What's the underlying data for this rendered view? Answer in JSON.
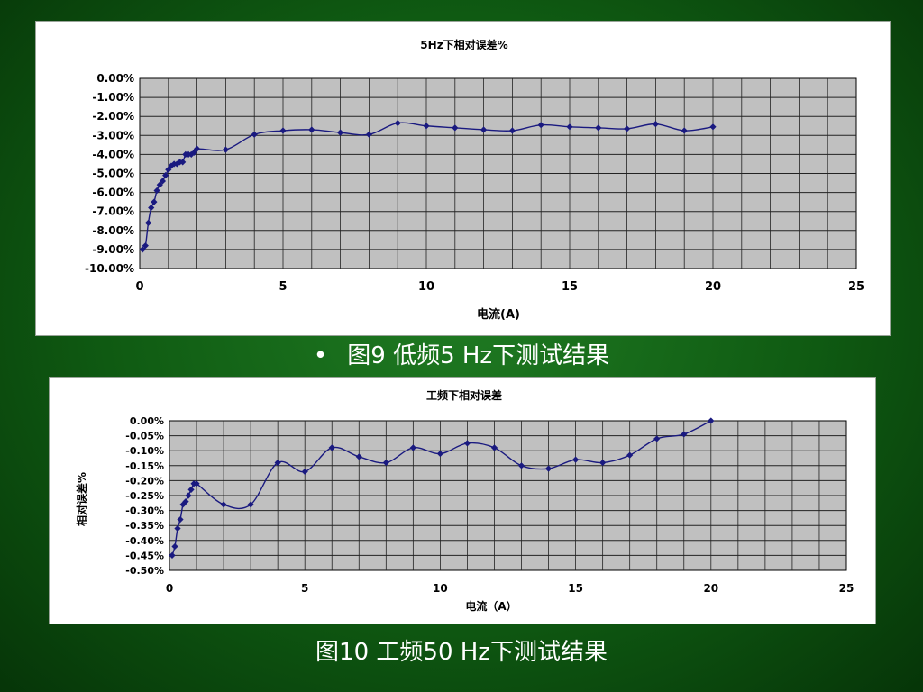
{
  "chart_data": [
    {
      "type": "line",
      "title": "5Hz下相对误差%",
      "xlabel": "电流(A)",
      "ylabel": "",
      "xlim": [
        0,
        25
      ],
      "ylim": [
        -10,
        0
      ],
      "x_ticks": [
        0,
        5,
        10,
        15,
        20,
        25
      ],
      "x_tick_labels": [
        "0",
        "5",
        "10",
        "15",
        "20",
        "25"
      ],
      "y_ticks": [
        0,
        -1,
        -2,
        -3,
        -4,
        -5,
        -6,
        -7,
        -8,
        -9,
        -10
      ],
      "y_tick_labels": [
        "0.00%",
        "-1.00%",
        "-2.00%",
        "-3.00%",
        "-4.00%",
        "-5.00%",
        "-6.00%",
        "-7.00%",
        "-8.00%",
        "-9.00%",
        "-10.00%"
      ],
      "grid": true,
      "color": "#1a1a80",
      "x": [
        0.1,
        0.2,
        0.3,
        0.4,
        0.5,
        0.6,
        0.7,
        0.8,
        0.9,
        1.0,
        1.1,
        1.2,
        1.3,
        1.4,
        1.5,
        1.6,
        1.7,
        1.8,
        1.9,
        2,
        3,
        4,
        5,
        6,
        7,
        8,
        9,
        10,
        11,
        12,
        13,
        14,
        15,
        16,
        17,
        18,
        19,
        20
      ],
      "y": [
        -9.0,
        -8.8,
        -7.6,
        -6.8,
        -6.5,
        -5.9,
        -5.6,
        -5.4,
        -5.1,
        -4.8,
        -4.6,
        -4.5,
        -4.5,
        -4.4,
        -4.4,
        -4.0,
        -4.0,
        -4.0,
        -3.9,
        -3.7,
        -3.75,
        -2.95,
        -2.75,
        -2.7,
        -2.85,
        -2.95,
        -2.35,
        -2.5,
        -2.6,
        -2.7,
        -2.75,
        -2.45,
        -2.55,
        -2.6,
        -2.65,
        -2.4,
        -2.75,
        -2.55
      ]
    },
    {
      "type": "line",
      "title": "工频下相对误差",
      "xlabel": "电流（A）",
      "ylabel": "相对误差%",
      "xlim": [
        0,
        25
      ],
      "ylim": [
        -0.5,
        0
      ],
      "x_ticks": [
        0,
        5,
        10,
        15,
        20,
        25
      ],
      "x_tick_labels": [
        "0",
        "5",
        "10",
        "15",
        "20",
        "25"
      ],
      "y_ticks": [
        0,
        -0.05,
        -0.1,
        -0.15,
        -0.2,
        -0.25,
        -0.3,
        -0.35,
        -0.4,
        -0.45,
        -0.5
      ],
      "y_tick_labels": [
        "0.00%",
        "-0.05%",
        "-0.10%",
        "-0.15%",
        "-0.20%",
        "-0.25%",
        "-0.30%",
        "-0.35%",
        "-0.40%",
        "-0.45%",
        "-0.50%"
      ],
      "grid": true,
      "color": "#1a1a80",
      "x": [
        0.1,
        0.2,
        0.3,
        0.4,
        0.5,
        0.6,
        0.7,
        0.8,
        0.9,
        1.0,
        2,
        3,
        4,
        5,
        6,
        7,
        8,
        9,
        10,
        11,
        12,
        13,
        14,
        15,
        16,
        17,
        18,
        19,
        20
      ],
      "y": [
        -0.45,
        -0.42,
        -0.36,
        -0.33,
        -0.28,
        -0.27,
        -0.25,
        -0.23,
        -0.21,
        -0.21,
        -0.28,
        -0.28,
        -0.14,
        -0.17,
        -0.09,
        -0.12,
        -0.14,
        -0.09,
        -0.11,
        -0.075,
        -0.09,
        -0.15,
        -0.16,
        -0.13,
        -0.14,
        -0.115,
        -0.06,
        -0.045,
        0.0
      ]
    }
  ],
  "captions": {
    "fig9_bullet": "•",
    "fig9": "图9  低频5 Hz下测试结果",
    "fig10": "图10  工频50 Hz下测试结果"
  }
}
